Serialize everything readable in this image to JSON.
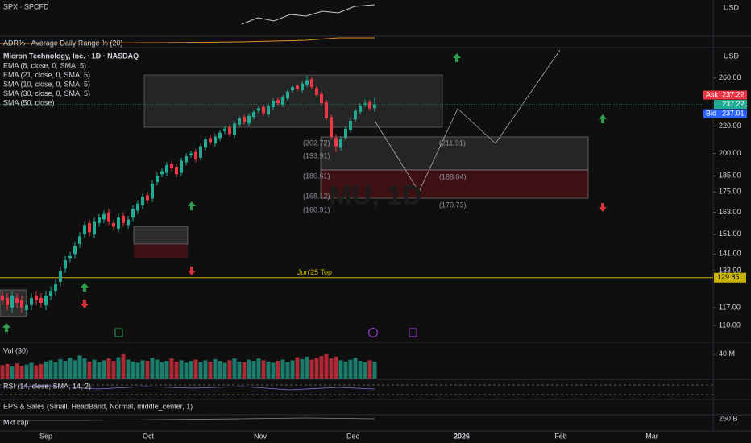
{
  "chart_data": {
    "type": "candlestick",
    "title": "Micron Technology, Inc. · 1D · NASDAQ",
    "watermark": "MU, 1D",
    "indicators": [
      "EMA (8, close, 0, SMA, 5)",
      "EMA (21, close, 0, SMA, 5)",
      "SMA (10, close, 0, SMA, 5)",
      "SMA (30, close, 0, SMA, 5)",
      "SMA (50, close)"
    ],
    "currency": "USD",
    "log_scale": true,
    "ylim": [
      104.3,
      286.6
    ],
    "yticks": [
      {
        "value": 110,
        "label": "110.00"
      },
      {
        "value": 117,
        "label": "117.00"
      },
      {
        "value": 133,
        "label": "133.00"
      },
      {
        "value": 141,
        "label": "141.00"
      },
      {
        "value": 151,
        "label": "151.00"
      },
      {
        "value": 163,
        "label": "163.00"
      },
      {
        "value": 175,
        "label": "175.00"
      },
      {
        "value": 185,
        "label": "185.00"
      },
      {
        "value": 200,
        "label": "200.00"
      },
      {
        "value": 220,
        "label": "220.00"
      },
      {
        "value": 260,
        "label": "260.00"
      }
    ],
    "x_labels": [
      "Sep",
      "Oct",
      "Nov",
      "Dec",
      "2026",
      "Feb",
      "Mar"
    ],
    "up_color": "#22ab94",
    "down_color": "#f23645",
    "open": [
      122,
      121,
      117,
      121,
      120,
      116,
      118,
      122,
      121,
      118,
      122,
      124,
      128,
      134,
      139,
      141,
      146,
      151,
      157,
      151,
      157,
      159,
      163,
      157,
      154,
      161,
      156,
      160,
      164,
      167,
      173,
      171,
      181,
      186,
      187,
      193,
      191,
      187,
      194,
      199,
      201,
      197,
      204,
      211,
      207,
      211,
      216,
      219,
      213,
      221,
      227,
      222,
      227,
      232,
      235,
      229,
      235,
      241,
      237,
      242,
      249,
      253,
      249,
      254,
      259,
      251,
      246,
      239,
      227,
      211,
      204,
      211,
      217,
      225,
      231,
      237,
      239,
      234
    ],
    "high": [
      124,
      123,
      124,
      123,
      122,
      120,
      123,
      124,
      123,
      124,
      126,
      129,
      135,
      140,
      142,
      147,
      152,
      158,
      159,
      160,
      162,
      164,
      165,
      159,
      162,
      163,
      161,
      167,
      170,
      174,
      175,
      182,
      187,
      190,
      194,
      195,
      193,
      197,
      200,
      202,
      203,
      207,
      212,
      213,
      214,
      217,
      220,
      221,
      224,
      228,
      229,
      230,
      233,
      236,
      237,
      238,
      242,
      243,
      245,
      250,
      254,
      255,
      257,
      262,
      261,
      253,
      248,
      241,
      229,
      214,
      212,
      220,
      226,
      234,
      238,
      241,
      241,
      243
    ],
    "low": [
      118,
      116,
      115,
      117,
      115,
      114,
      116,
      118,
      117,
      116,
      120,
      122,
      126,
      132,
      137,
      139,
      144,
      149,
      150,
      149,
      155,
      157,
      156,
      153,
      152,
      155,
      154,
      158,
      162,
      165,
      168,
      169,
      179,
      184,
      185,
      188,
      184,
      185,
      192,
      197,
      194,
      195,
      202,
      206,
      205,
      209,
      214,
      212,
      211,
      219,
      221,
      220,
      225,
      230,
      228,
      227,
      233,
      236,
      235,
      240,
      247,
      248,
      247,
      252,
      250,
      243,
      236,
      224,
      210,
      201,
      202,
      209,
      215,
      223,
      229,
      235,
      232,
      231
    ],
    "close": [
      120,
      118,
      122,
      119,
      117,
      118,
      121,
      120,
      119,
      122,
      124,
      127,
      133,
      138,
      140,
      145,
      150,
      156,
      152,
      158,
      160,
      162,
      158,
      155,
      160,
      157,
      159,
      165,
      168,
      172,
      170,
      180,
      185,
      188,
      192,
      190,
      186,
      195,
      198,
      200,
      196,
      205,
      210,
      208,
      212,
      215,
      218,
      214,
      222,
      226,
      223,
      228,
      231,
      234,
      230,
      236,
      240,
      238,
      243,
      248,
      252,
      250,
      255,
      258,
      252,
      245,
      238,
      226,
      212,
      205,
      210,
      218,
      224,
      232,
      236,
      238,
      234,
      237.22
    ],
    "volume": {
      "title": "Vol (30)",
      "ylim": [
        0,
        57
      ],
      "yticks": [
        {
          "value": 40,
          "label": "40 M"
        }
      ],
      "values": [
        22,
        24,
        20,
        25,
        21,
        23,
        26,
        22,
        24,
        28,
        30,
        27,
        32,
        29,
        34,
        30,
        38,
        33,
        28,
        31,
        27,
        30,
        33,
        29,
        35,
        40,
        31,
        28,
        26,
        30,
        29,
        34,
        31,
        27,
        29,
        33,
        28,
        30,
        26,
        29,
        31,
        27,
        30,
        28,
        32,
        29,
        26,
        30,
        33,
        28,
        27,
        31,
        29,
        33,
        30,
        28,
        26,
        29,
        31,
        27,
        30,
        35,
        32,
        36,
        31,
        34,
        37,
        40,
        33,
        36,
        30,
        28,
        31,
        34,
        29,
        27,
        30,
        28
      ]
    },
    "quote": {
      "ask_label": "Ask",
      "ask": 237.22,
      "last": 237.22,
      "bid_label": "Bid",
      "bid": 237.01
    },
    "level": {
      "label": "Jun'25 Top",
      "value": 129.85,
      "color": "#c8b400"
    },
    "annotations": [
      "(202.72)",
      "(193.91)",
      "(180.61)",
      "(168.12)",
      "(160.91)",
      "(211.91)",
      "(188.04)",
      "(170.73)"
    ]
  },
  "panes": {
    "spx": "SPX · SPCFD",
    "spx_currency": "USD",
    "adr": "ADR% - Average Daily Range % (20)",
    "rsi": "RSI (14, close, SMA, 14, 2)",
    "eps": "EPS & Sales (Small, HeadBand, Normal, middle_center, 1)",
    "mkt_cap": "Mkt cap",
    "mkt_cap_tick": "250 B"
  }
}
